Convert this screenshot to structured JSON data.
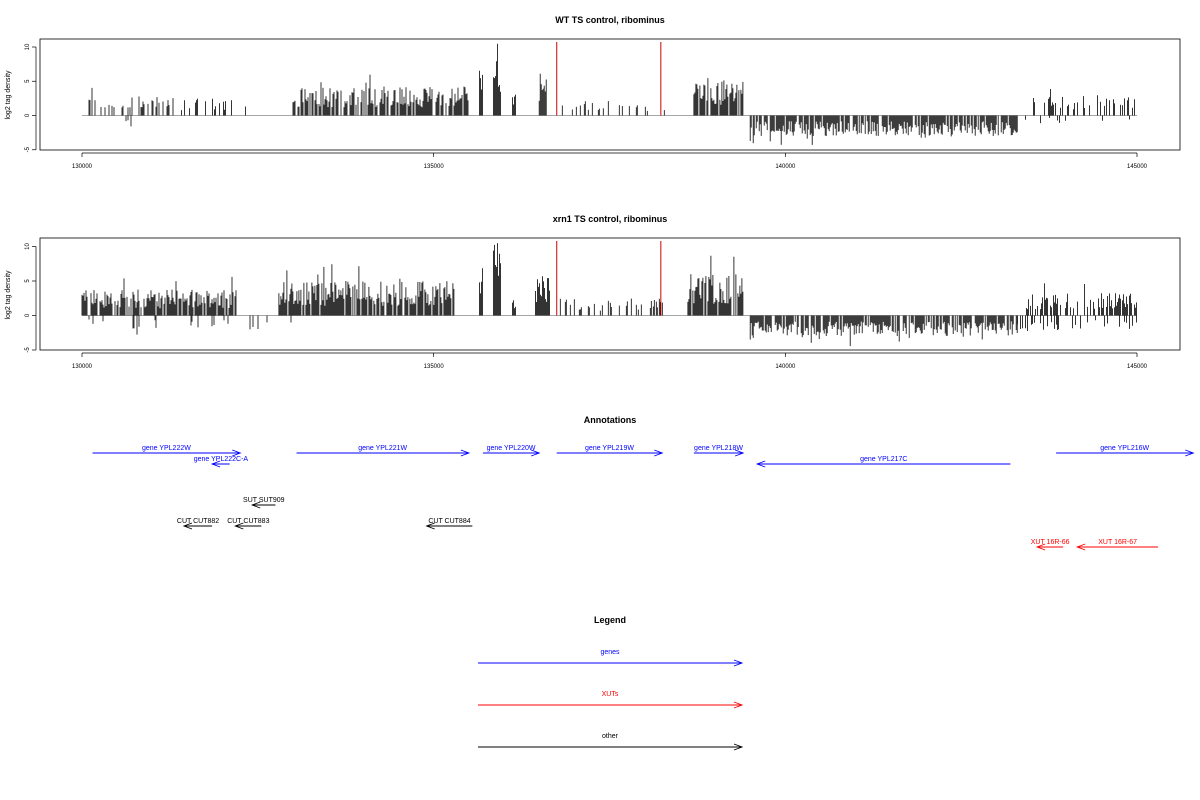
{
  "chart_data": [
    {
      "type": "bar",
      "title": "WT TS control, ribominus",
      "ylabel": "log2 tag density",
      "xlabel": "",
      "xlim": [
        130000,
        145000
      ],
      "ylim": [
        -5,
        10
      ],
      "x_ticks": [
        "130000",
        "135000",
        "140000",
        "145000"
      ],
      "y_ticks": [
        "-5",
        "0",
        "5",
        "10"
      ],
      "red_markers": [
        136750,
        138230
      ],
      "pos_segments": [
        {
          "start": 130100,
          "end": 131300,
          "amp": 2.2,
          "density": 0.35
        },
        {
          "start": 131400,
          "end": 132400,
          "amp": 2.0,
          "density": 0.3
        },
        {
          "start": 133000,
          "end": 135500,
          "amp": 3.4,
          "density": 0.75
        },
        {
          "start": 135650,
          "end": 135700,
          "amp": 6.2,
          "density": 1
        },
        {
          "start": 135850,
          "end": 135950,
          "amp": 8.8,
          "density": 1
        },
        {
          "start": 136120,
          "end": 136170,
          "amp": 2.6,
          "density": 1
        },
        {
          "start": 136500,
          "end": 136600,
          "amp": 5.0,
          "density": 1
        },
        {
          "start": 136800,
          "end": 138300,
          "amp": 1.7,
          "density": 0.2
        },
        {
          "start": 138700,
          "end": 139400,
          "amp": 4.0,
          "density": 0.85
        },
        {
          "start": 143500,
          "end": 145000,
          "amp": 2.2,
          "density": 0.25
        }
      ],
      "neg_segments": [
        {
          "start": 130000,
          "end": 131000,
          "amp": 1.4,
          "density": 0.05
        },
        {
          "start": 139500,
          "end": 143300,
          "amp": 2.4,
          "density": 0.8
        },
        {
          "start": 143300,
          "end": 145000,
          "amp": 1.0,
          "density": 0.05
        }
      ]
    },
    {
      "type": "bar",
      "title": "xrn1 TS control, ribominus",
      "ylabel": "log2 tag density",
      "xlabel": "",
      "xlim": [
        130000,
        145000
      ],
      "ylim": [
        -5,
        10
      ],
      "x_ticks": [
        "130000",
        "135000",
        "140000",
        "145000"
      ],
      "y_ticks": [
        "-5",
        "0",
        "5",
        "10"
      ],
      "red_markers": [
        136750,
        138230
      ],
      "pos_segments": [
        {
          "start": 130000,
          "end": 132200,
          "amp": 3.0,
          "density": 0.8
        },
        {
          "start": 132800,
          "end": 135300,
          "amp": 4.0,
          "density": 0.9
        },
        {
          "start": 135650,
          "end": 135700,
          "amp": 5.5,
          "density": 1
        },
        {
          "start": 135850,
          "end": 135950,
          "amp": 9.0,
          "density": 1
        },
        {
          "start": 136120,
          "end": 136170,
          "amp": 3.0,
          "density": 1
        },
        {
          "start": 136450,
          "end": 136650,
          "amp": 4.8,
          "density": 1
        },
        {
          "start": 136800,
          "end": 138300,
          "amp": 2.0,
          "density": 0.35
        },
        {
          "start": 138600,
          "end": 139400,
          "amp": 4.8,
          "density": 0.9
        },
        {
          "start": 143400,
          "end": 145000,
          "amp": 2.6,
          "density": 0.55
        }
      ],
      "neg_segments": [
        {
          "start": 130000,
          "end": 133000,
          "amp": 1.6,
          "density": 0.12
        },
        {
          "start": 139500,
          "end": 143300,
          "amp": 2.4,
          "density": 0.8
        },
        {
          "start": 143300,
          "end": 145000,
          "amp": 1.8,
          "density": 0.3
        }
      ]
    }
  ],
  "annotations": {
    "title": "Annotations",
    "features": [
      {
        "label": "gene YPL222W",
        "start": 130150,
        "end": 132250,
        "dir": "right",
        "color": "#0000ff",
        "row": 0
      },
      {
        "label": "gene YPL222C-A",
        "start": 131850,
        "end": 132100,
        "dir": "left",
        "color": "#0000ff",
        "row": 1
      },
      {
        "label": "gene YPL221W",
        "start": 133050,
        "end": 135500,
        "dir": "right",
        "color": "#0000ff",
        "row": 0
      },
      {
        "label": "gene YPL220W",
        "start": 135700,
        "end": 136500,
        "dir": "right",
        "color": "#0000ff",
        "row": 0
      },
      {
        "label": "gene YPL219W",
        "start": 136750,
        "end": 138250,
        "dir": "right",
        "color": "#0000ff",
        "row": 0
      },
      {
        "label": "gene YPL218W",
        "start": 138700,
        "end": 139400,
        "dir": "right",
        "color": "#0000ff",
        "row": 0
      },
      {
        "label": "gene YPL217C",
        "start": 139600,
        "end": 143200,
        "dir": "left",
        "color": "#0000ff",
        "row": 1
      },
      {
        "label": "gene YPL216W",
        "start": 143850,
        "end": 145800,
        "dir": "right",
        "color": "#0000ff",
        "row": 0
      },
      {
        "label": "SUT SUT909",
        "start": 132420,
        "end": 132750,
        "dir": "left",
        "color": "#000000",
        "row": 2
      },
      {
        "label": "CUT CUT882",
        "start": 131450,
        "end": 131850,
        "dir": "left",
        "color": "#000000",
        "row": 3
      },
      {
        "label": "CUT CUT883",
        "start": 132180,
        "end": 132550,
        "dir": "left",
        "color": "#000000",
        "row": 3
      },
      {
        "label": "CUT CUT884",
        "start": 134900,
        "end": 135550,
        "dir": "left",
        "color": "#000000",
        "row": 3
      },
      {
        "label": "XUT 16R-66",
        "start": 143580,
        "end": 143950,
        "dir": "left",
        "color": "#ff0000",
        "row": 4
      },
      {
        "label": "XUT 16R-67",
        "start": 144150,
        "end": 145300,
        "dir": "left",
        "color": "#ff0000",
        "row": 4
      }
    ]
  },
  "legend": {
    "title": "Legend",
    "items": [
      {
        "label": "genes",
        "color": "#0000ff"
      },
      {
        "label": "XUTs",
        "color": "#ff0000"
      },
      {
        "label": "other",
        "color": "#000000"
      }
    ]
  }
}
